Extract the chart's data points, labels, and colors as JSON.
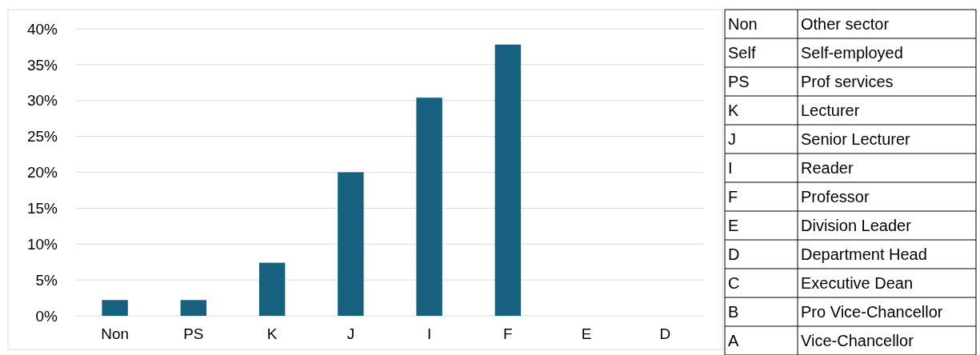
{
  "chart_data": [
    {
      "type": "bar",
      "categories": [
        "Non",
        "PS",
        "K",
        "J",
        "I",
        "F",
        "E",
        "D"
      ],
      "values": [
        2.2,
        2.2,
        7.4,
        20,
        30.4,
        37.8,
        0,
        0
      ],
      "color": "#17607f",
      "ylim": [
        0,
        40
      ],
      "yticks": [
        {
          "value": 0,
          "label": "0%"
        },
        {
          "value": 5,
          "label": "5%"
        },
        {
          "value": 10,
          "label": "10%"
        },
        {
          "value": 15,
          "label": "15%"
        },
        {
          "value": 20,
          "label": "20%"
        },
        {
          "value": 25,
          "label": "25%"
        },
        {
          "value": 30,
          "label": "30%"
        },
        {
          "value": 35,
          "label": "35%"
        },
        {
          "value": 40,
          "label": "40%"
        }
      ],
      "grid": "y"
    },
    {
      "type": "other",
      "categories": [
        "Non",
        "Self",
        "PS",
        "K",
        "J",
        "I",
        "F",
        "E",
        "D",
        "C",
        "B",
        "A"
      ],
      "annotations": [
        "Other sector",
        "Self-employed",
        "Prof services",
        "Lecturer",
        "Senior Lecturer",
        "Reader",
        "Professor",
        "Division Leader",
        "Department Head",
        "Executive Dean",
        "Pro Vice-Chancellor",
        "Vice-Chancellor"
      ]
    }
  ]
}
